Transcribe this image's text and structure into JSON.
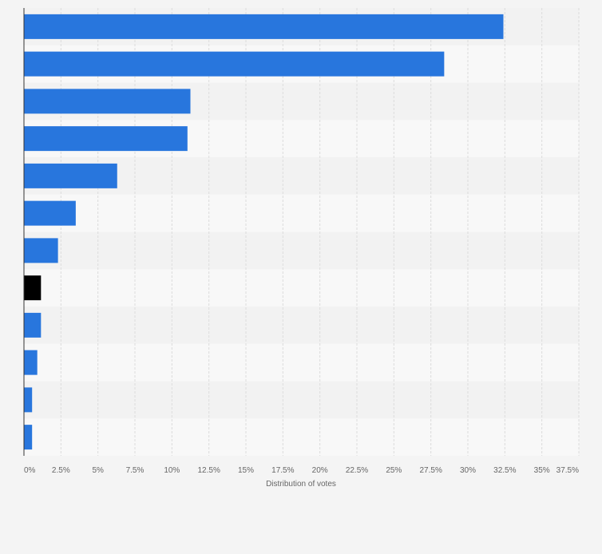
{
  "chart_data": {
    "type": "bar",
    "orientation": "horizontal",
    "title": "",
    "xlabel": "Distribution of votes",
    "ylabel": "",
    "categories": [
      "",
      "",
      "",
      "",
      "",
      "",
      "",
      "",
      "",
      "",
      "",
      ""
    ],
    "values": [
      32.4,
      28.4,
      11.25,
      11.05,
      6.3,
      3.5,
      2.3,
      1.15,
      1.15,
      0.9,
      0.55,
      0.55
    ],
    "xlim": [
      0,
      37.5
    ],
    "xticks": [
      "0%",
      "2.5%",
      "5%",
      "7.5%",
      "10%",
      "12.5%",
      "15%",
      "17.5%",
      "20%",
      "22.5%",
      "25%",
      "27.5%",
      "30%",
      "32.5%",
      "35%",
      "37.5%"
    ],
    "grid": true,
    "legend": "none",
    "colors": {
      "bar": "#2876dd",
      "highlight_bar": "#000000",
      "highlight_index": 7,
      "band_light": "#f8f8f8",
      "band_dark": "#f2f2f2",
      "grid": "#dcdcdc",
      "axis_text": "#666666"
    }
  }
}
